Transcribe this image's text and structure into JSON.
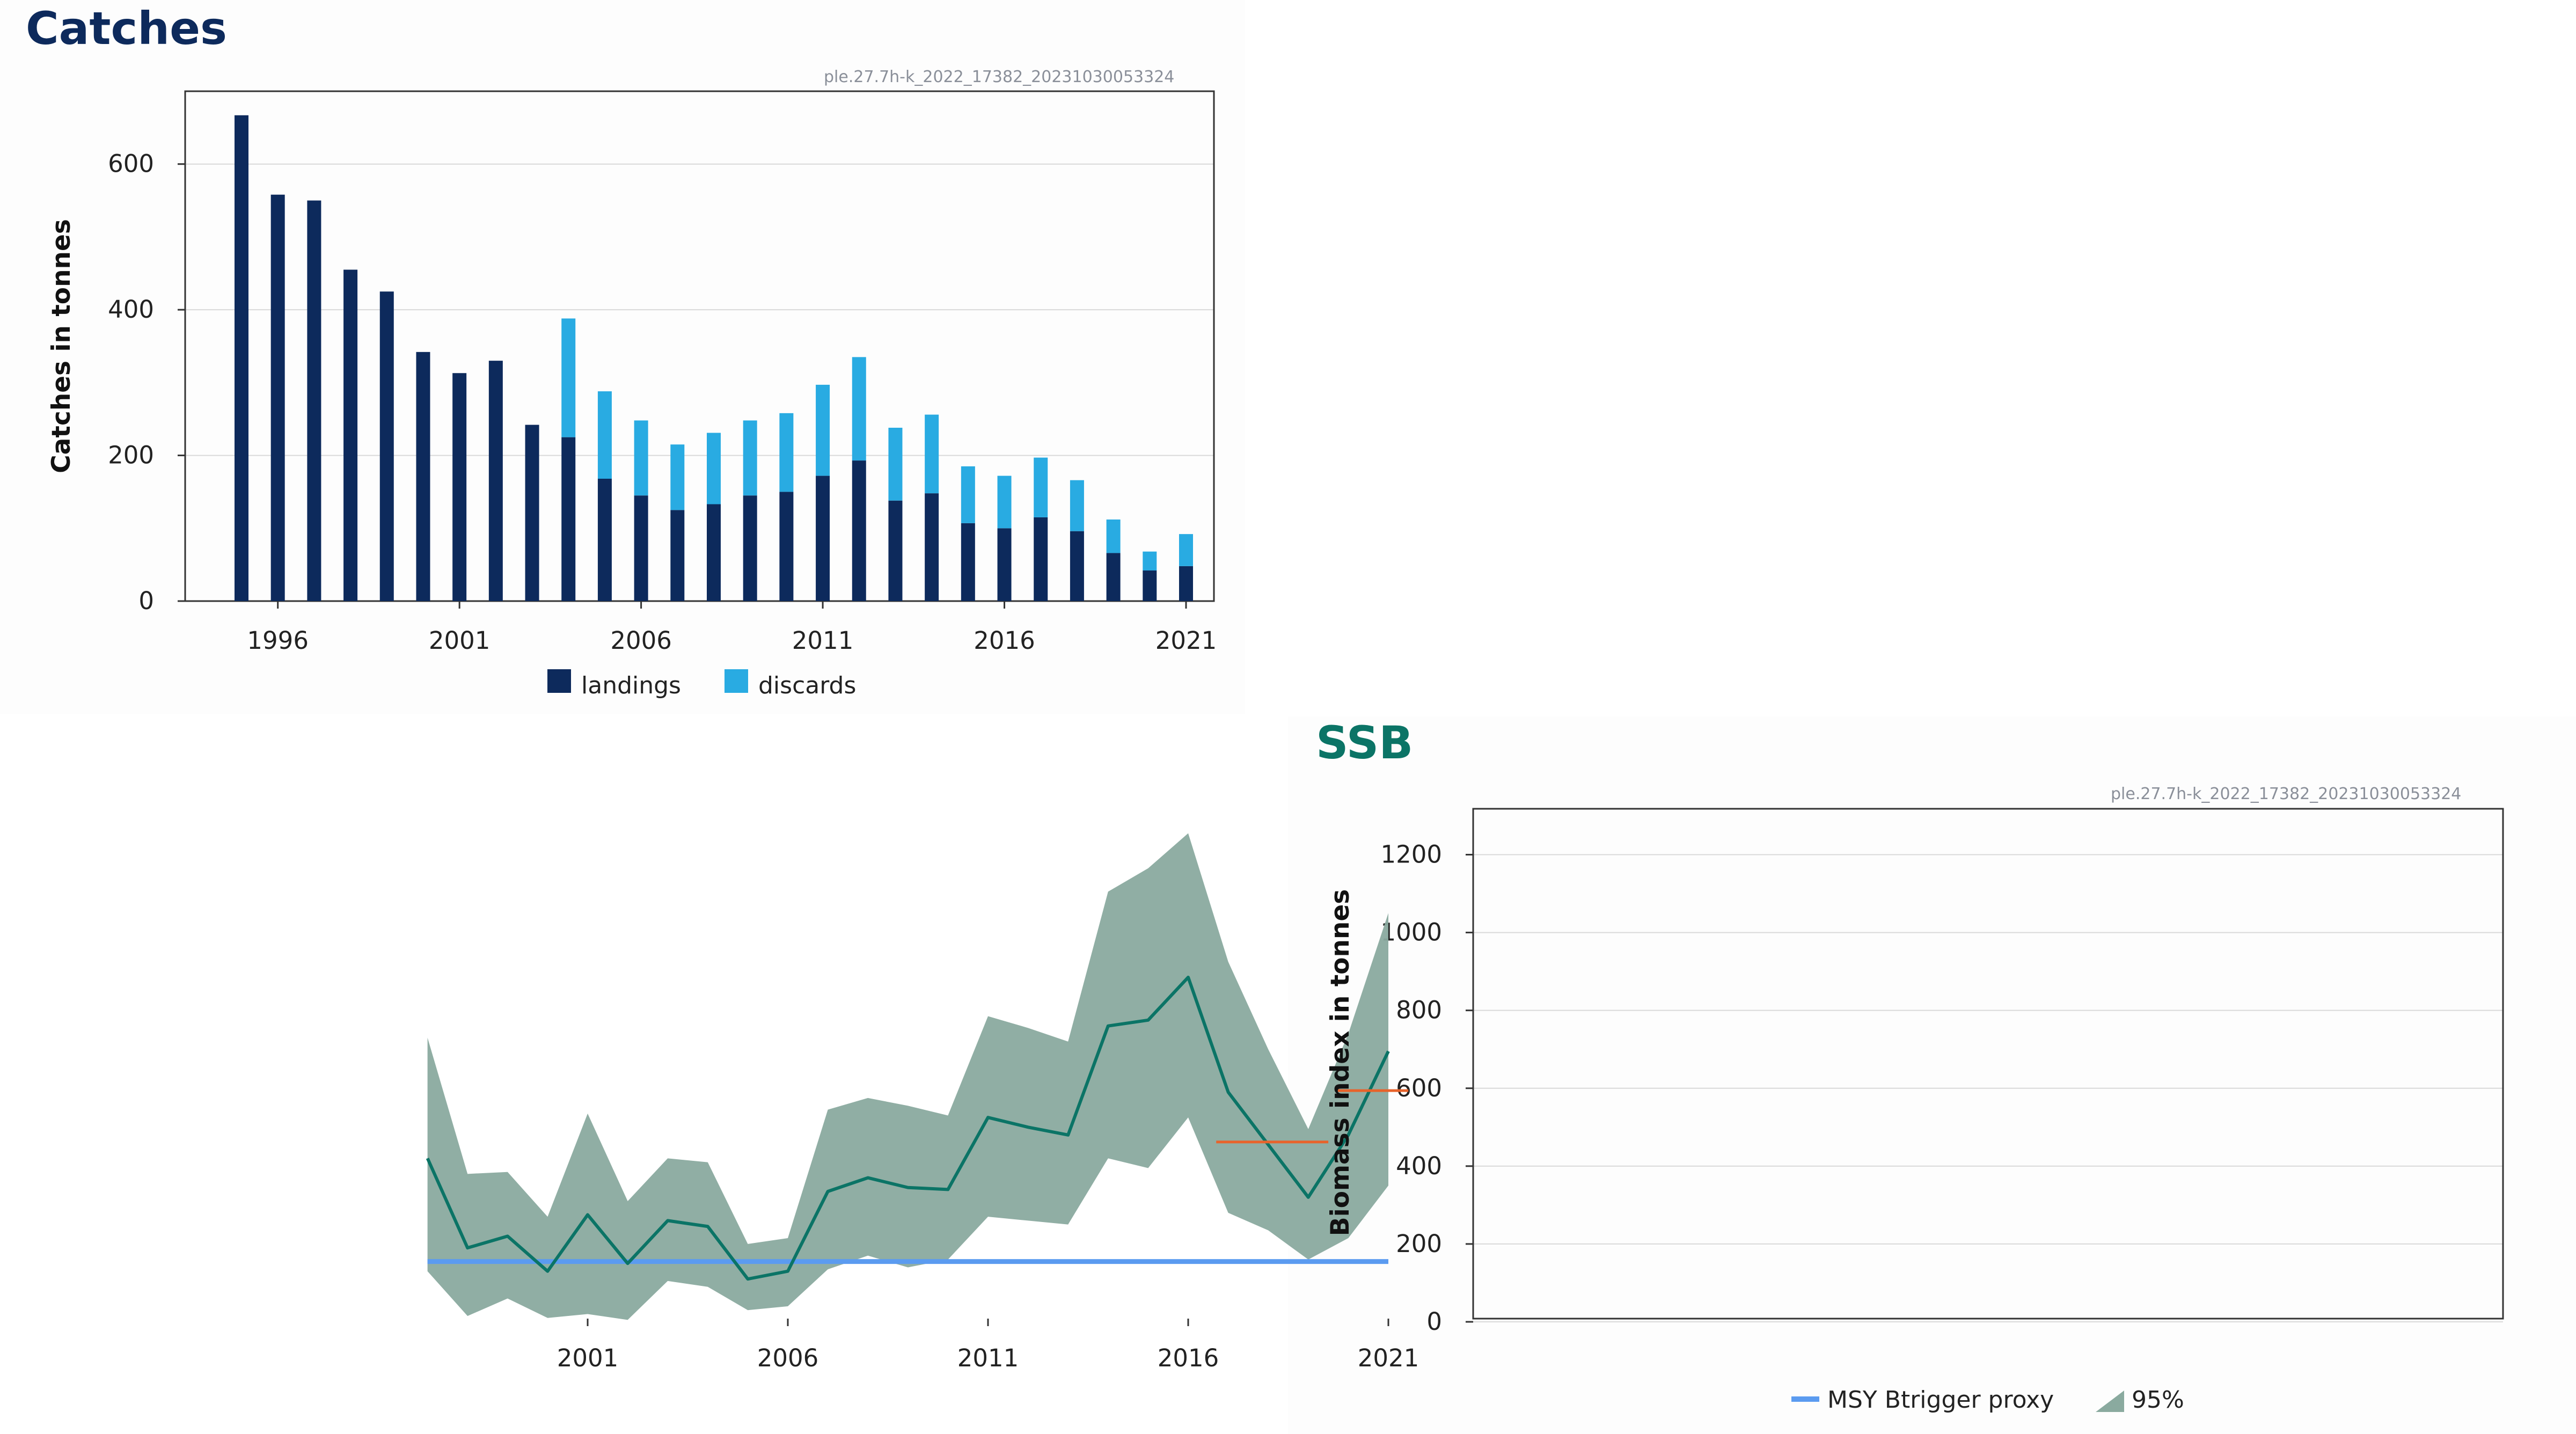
{
  "chart_data": [
    {
      "type": "bar",
      "title": "Catches",
      "source_note": "ple.27.7h-k_2022_17382_20231030053324",
      "ylabel": "Catches in tonnes",
      "xlabel": "",
      "ylim": [
        0,
        700
      ],
      "yticks": [
        0,
        200,
        400,
        600
      ],
      "xticks": [
        1996,
        2001,
        2006,
        2011,
        2016,
        2021
      ],
      "grid": true,
      "stacked": true,
      "legend_position": "bottom",
      "categories": [
        1995,
        1996,
        1997,
        1998,
        1999,
        2000,
        2001,
        2002,
        2003,
        2004,
        2005,
        2006,
        2007,
        2008,
        2009,
        2010,
        2011,
        2012,
        2013,
        2014,
        2015,
        2016,
        2017,
        2018,
        2019,
        2020,
        2021
      ],
      "series": [
        {
          "name": "landings",
          "color": "#0d2a5c",
          "values": [
            667,
            558,
            550,
            455,
            425,
            342,
            313,
            330,
            242,
            225,
            168,
            145,
            125,
            133,
            145,
            150,
            172,
            193,
            138,
            148,
            107,
            100,
            115,
            96,
            66,
            42,
            48
          ]
        },
        {
          "name": "discards",
          "color": "#29abe2",
          "values": [
            0,
            0,
            0,
            0,
            0,
            0,
            0,
            0,
            0,
            163,
            120,
            103,
            90,
            98,
            103,
            108,
            125,
            142,
            100,
            108,
            78,
            72,
            82,
            70,
            46,
            26,
            44
          ]
        }
      ]
    },
    {
      "type": "line",
      "title": "SSB",
      "source_note": "ple.27.7h-k_2022_17382_20231030053324",
      "ylabel": "Biomass index in tonnes",
      "xlabel": "",
      "ylim": [
        0,
        1300
      ],
      "xlim": [
        1997,
        2022
      ],
      "yticks": [
        0,
        200,
        400,
        600,
        800,
        1000,
        1200
      ],
      "xticks": [
        2001,
        2006,
        2011,
        2016,
        2021
      ],
      "grid": true,
      "legend_position": "bottom",
      "x": [
        1997,
        1998,
        1999,
        2000,
        2001,
        2002,
        2003,
        2004,
        2005,
        2006,
        2007,
        2008,
        2009,
        2010,
        2011,
        2012,
        2013,
        2014,
        2015,
        2016,
        2017,
        2018,
        2019,
        2020,
        2021
      ],
      "series": [
        {
          "name": "",
          "color": "#0b7466",
          "values": [
            420,
            190,
            220,
            130,
            275,
            150,
            260,
            245,
            110,
            130,
            335,
            370,
            345,
            340,
            525,
            500,
            480,
            760,
            775,
            885,
            590,
            455,
            320,
            480,
            695
          ]
        }
      ],
      "band": {
        "name": "95%",
        "color": "#8aaa9f",
        "lower": [
          130,
          15,
          60,
          10,
          20,
          5,
          105,
          90,
          30,
          40,
          135,
          170,
          140,
          160,
          270,
          260,
          250,
          420,
          395,
          525,
          280,
          235,
          160,
          215,
          350
        ],
        "upper": [
          730,
          380,
          385,
          270,
          535,
          310,
          420,
          410,
          200,
          215,
          545,
          575,
          555,
          530,
          785,
          755,
          720,
          1105,
          1165,
          1255,
          925,
          700,
          495,
          740,
          1050
        ]
      },
      "reference_lines": [
        {
          "name": "MSY Btrigger proxy",
          "color": "#5b9bf0",
          "value": 155,
          "x_from": 1997,
          "x_to": 2021
        }
      ],
      "segments": [
        {
          "color": "#e8632b",
          "value": 462,
          "x_from": 2016.7,
          "x_to": 2019.5
        },
        {
          "color": "#e8632b",
          "value": 594,
          "x_from": 2019.7,
          "x_to": 2021.5
        }
      ]
    }
  ]
}
